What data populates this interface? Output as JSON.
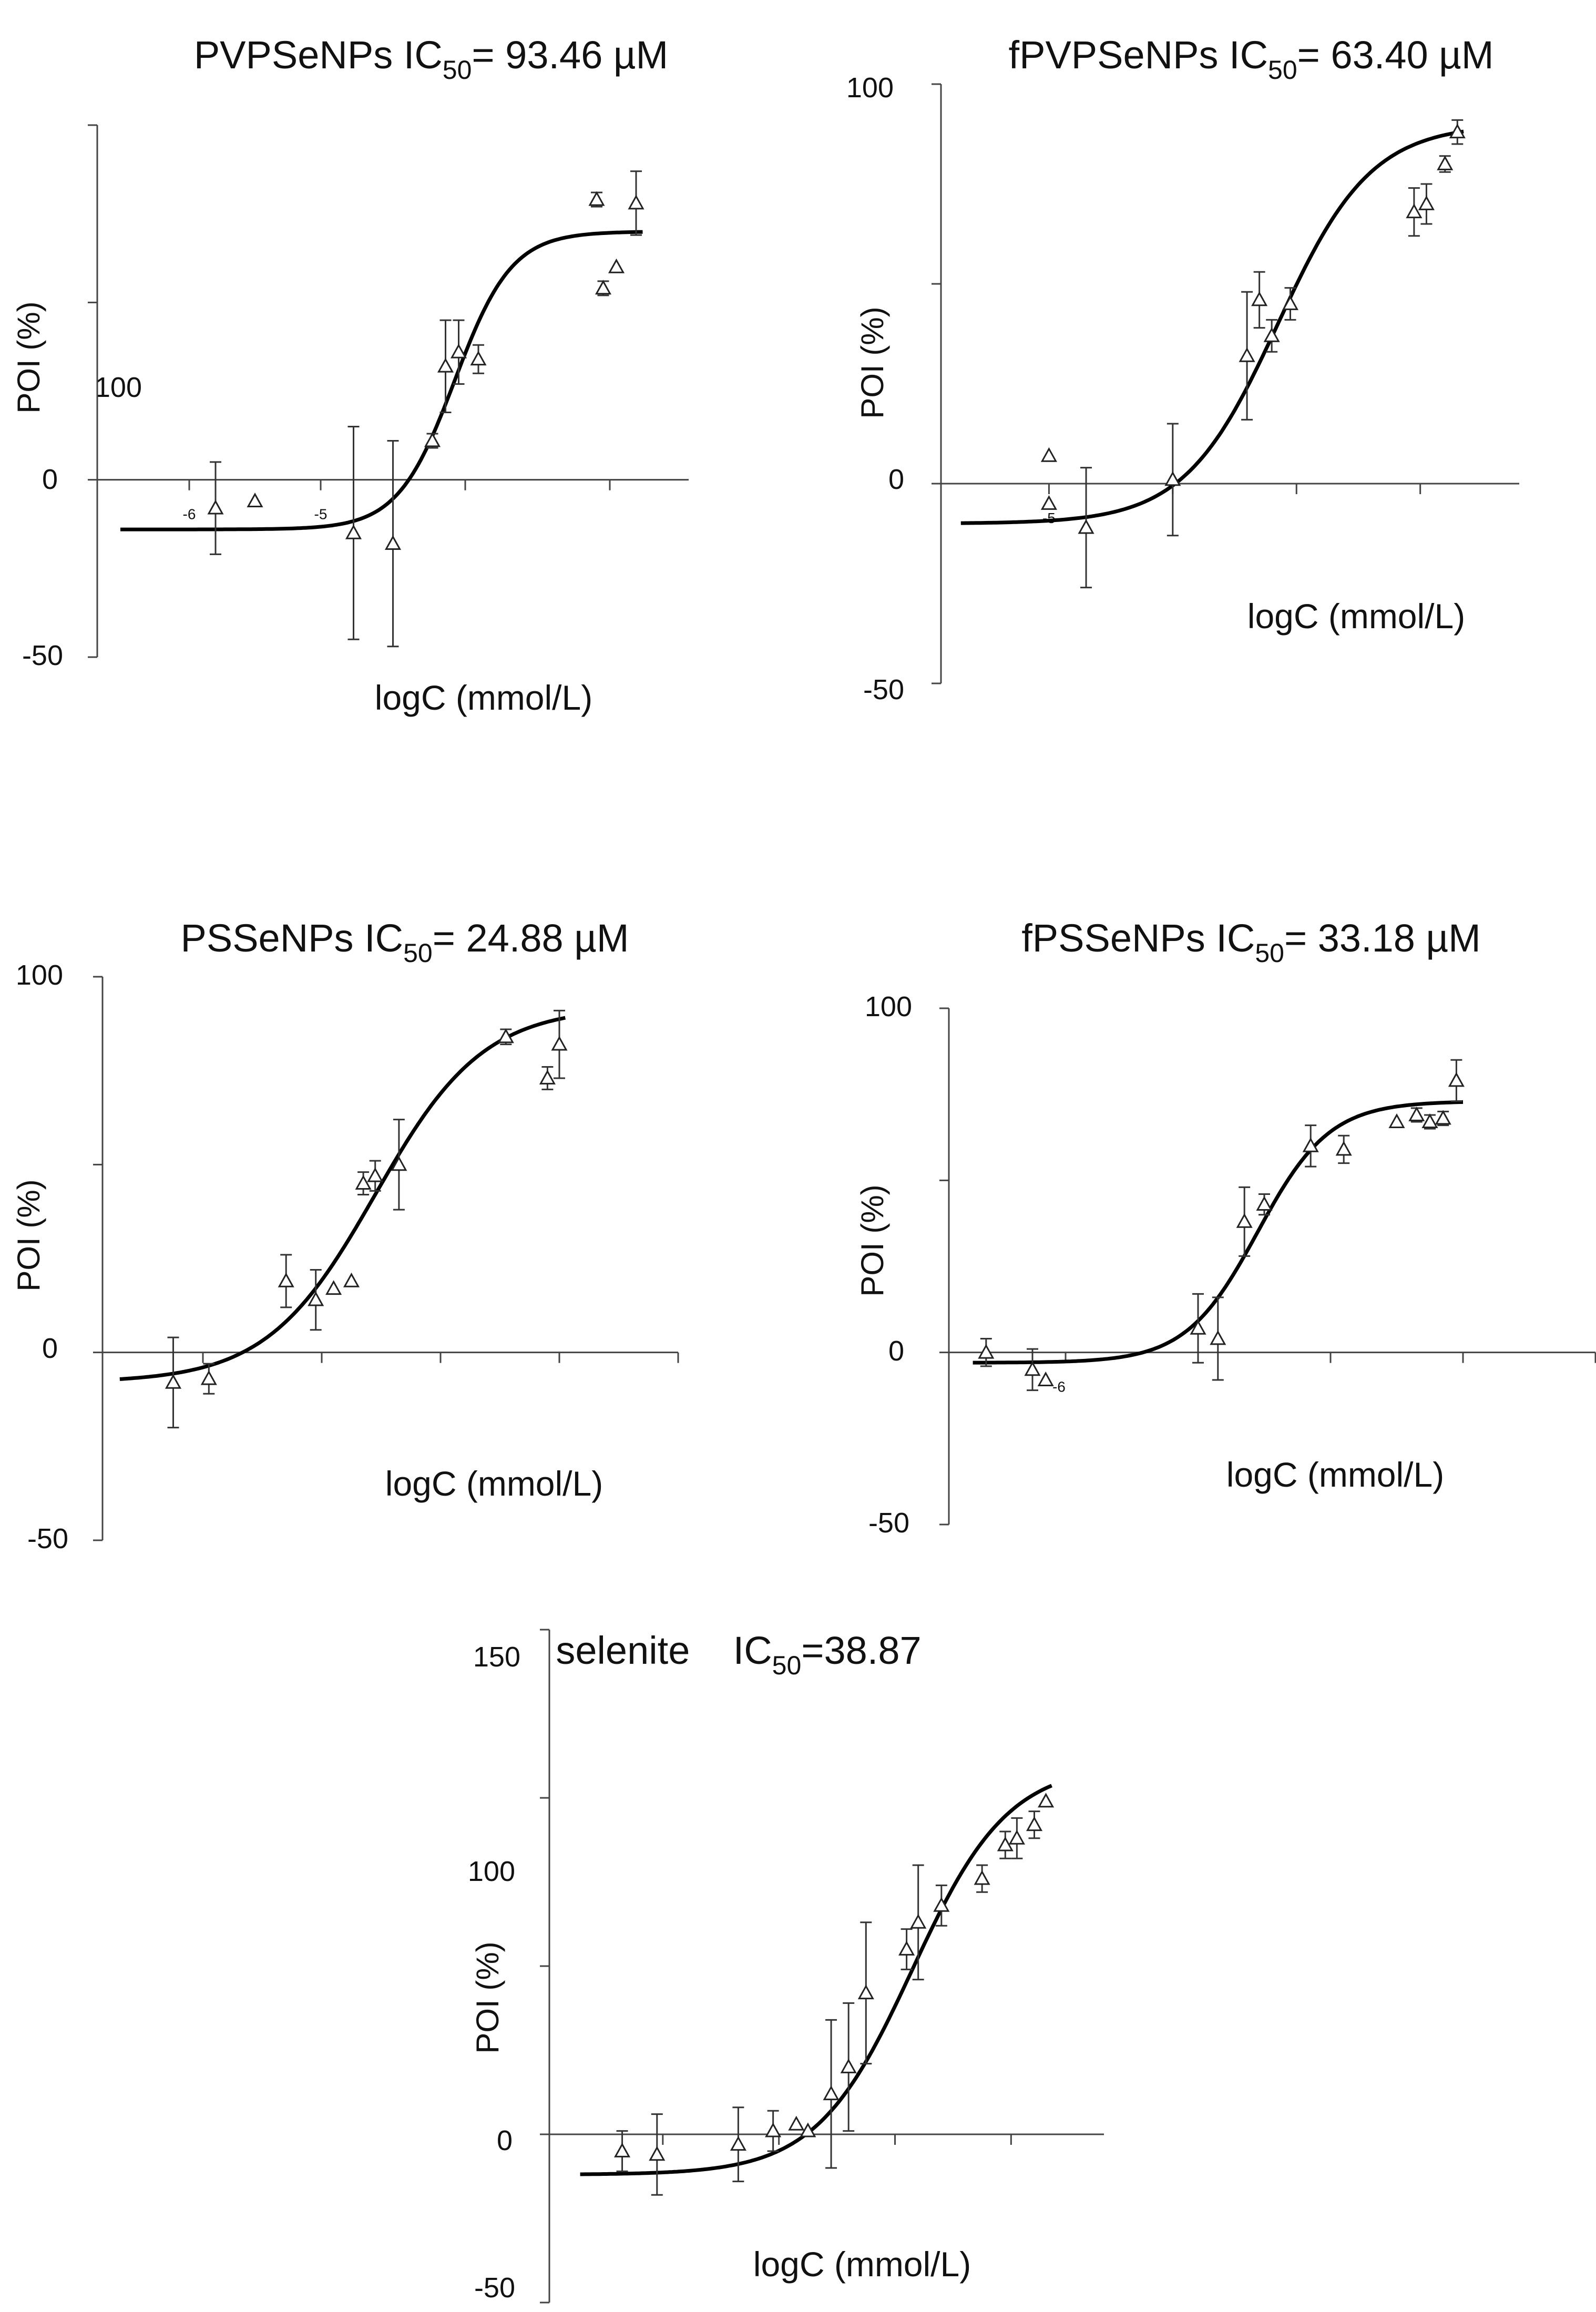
{
  "chart_data": [
    {
      "type": "scatter",
      "title": {
        "name": "PVPSeNPs IC",
        "sub": "50",
        "suffix": "= 93.46 µM"
      },
      "xlabel": "logC (mmol/L)",
      "ylabel": "POI (%)",
      "ylim": [
        -50,
        100
      ],
      "xlim": [
        -7.0,
        -2.4
      ],
      "y_ticks": [
        "100",
        "0",
        "-50"
      ],
      "x_tick_labels": [
        {
          "x": -6.2,
          "label": "-6"
        },
        {
          "x": -5.2,
          "label": "-5"
        }
      ],
      "y_tick_values": [
        100,
        50,
        0,
        -50
      ],
      "x_tick_values": [
        -6.2,
        -5.2,
        -4.1,
        -3.0
      ],
      "points": [
        {
          "x": -6.0,
          "y": -8,
          "err": 13
        },
        {
          "x": -5.7,
          "y": -6,
          "err": 0
        },
        {
          "x": -4.95,
          "y": -15,
          "err": 30
        },
        {
          "x": -4.65,
          "y": -18,
          "err": 29
        },
        {
          "x": -4.35,
          "y": 11,
          "err": 2
        },
        {
          "x": -4.25,
          "y": 32,
          "err": 13
        },
        {
          "x": -4.15,
          "y": 36,
          "err": 9
        },
        {
          "x": -4.0,
          "y": 34,
          "err": 4
        },
        {
          "x": -3.1,
          "y": 79,
          "err": 2
        },
        {
          "x": -3.05,
          "y": 54,
          "err": 2
        },
        {
          "x": -2.95,
          "y": 60,
          "err": 0
        },
        {
          "x": -2.8,
          "y": 78,
          "err": 9
        }
      ],
      "fit": {
        "bottom": -14,
        "top": 70,
        "x50": -4.18,
        "slope": 2.0
      }
    },
    {
      "type": "scatter",
      "title": {
        "name": "fPVPSeNPs IC",
        "sub": "50",
        "suffix": "= 63.40 µM"
      },
      "xlabel": "logC (mmol/L)",
      "ylabel": "POI (%)",
      "ylim": [
        -50,
        100
      ],
      "xlim": [
        -6.2,
        -1.4
      ],
      "y_ticks": [
        "100",
        "0",
        "-50"
      ],
      "x_tick_labels": [
        {
          "x": -5.2,
          "label": "-5"
        }
      ],
      "y_tick_values": [
        100,
        50,
        0,
        -50
      ],
      "x_tick_values": [
        -5.2,
        -4.2,
        -3.2,
        -2.2
      ],
      "points": [
        {
          "x": -5.2,
          "y": -5,
          "err": 0
        },
        {
          "x": -5.2,
          "y": 7,
          "err": 0
        },
        {
          "x": -4.9,
          "y": -11,
          "err": 15
        },
        {
          "x": -4.2,
          "y": 1,
          "err": 14
        },
        {
          "x": -3.6,
          "y": 32,
          "err": 16
        },
        {
          "x": -3.5,
          "y": 46,
          "err": 7
        },
        {
          "x": -3.4,
          "y": 37,
          "err": 4
        },
        {
          "x": -3.25,
          "y": 45,
          "err": 4
        },
        {
          "x": -2.25,
          "y": 68,
          "err": 6
        },
        {
          "x": -2.15,
          "y": 70,
          "err": 5
        },
        {
          "x": -2.0,
          "y": 80,
          "err": 2
        },
        {
          "x": -1.9,
          "y": 88,
          "err": 3
        }
      ],
      "fit": {
        "bottom": -10,
        "top": 90,
        "x50": -3.35,
        "slope": 1.15
      }
    },
    {
      "type": "scatter",
      "title": {
        "name": "PSSeNPs IC",
        "sub": "50",
        "suffix": "= 24.88 µM"
      },
      "xlabel": "logC (mmol/L)",
      "ylabel": "POI (%)",
      "ylim": [
        -50,
        100
      ],
      "xlim": [
        -6.0,
        -1.0
      ],
      "y_ticks": [
        "100",
        "0",
        "-50"
      ],
      "x_tick_labels": [],
      "y_tick_values": [
        100,
        50,
        0,
        -50
      ],
      "x_tick_values": [
        -5.0,
        -4.0,
        -3.0,
        -2.0,
        -1.0
      ],
      "points": [
        {
          "x": -5.25,
          "y": -8,
          "err": 12
        },
        {
          "x": -4.95,
          "y": -7,
          "err": 4
        },
        {
          "x": -4.3,
          "y": 19,
          "err": 7
        },
        {
          "x": -4.05,
          "y": 14,
          "err": 8
        },
        {
          "x": -3.9,
          "y": 17,
          "err": 0
        },
        {
          "x": -3.75,
          "y": 19,
          "err": 0
        },
        {
          "x": -3.65,
          "y": 45,
          "err": 3
        },
        {
          "x": -3.55,
          "y": 47,
          "err": 4
        },
        {
          "x": -3.35,
          "y": 50,
          "err": 12
        },
        {
          "x": -2.45,
          "y": 84,
          "err": 2
        },
        {
          "x": -2.1,
          "y": 73,
          "err": 3
        },
        {
          "x": -2.0,
          "y": 82,
          "err": 9
        }
      ],
      "fit": {
        "bottom": -8,
        "top": 92,
        "x50": -3.55,
        "slope": 0.95
      }
    },
    {
      "type": "scatter",
      "title": {
        "name": "fPSSeNPs IC",
        "sub": "50",
        "suffix": "= 33.18 µM"
      },
      "xlabel": "logC (mmol/L)",
      "ylabel": "POI (%)",
      "ylim": [
        -50,
        100
      ],
      "xlim": [
        -6.4,
        -1.4
      ],
      "y_ticks": [
        "100",
        "0",
        "-50"
      ],
      "x_tick_labels": [
        {
          "x": -5.45,
          "label": "-6"
        }
      ],
      "y_tick_values": [
        100,
        50,
        0,
        -50
      ],
      "x_tick_values": [
        -5.4,
        -4.4,
        -3.4,
        -2.4,
        -1.4
      ],
      "points": [
        {
          "x": -6.0,
          "y": 0,
          "err": 4
        },
        {
          "x": -5.65,
          "y": -5,
          "err": 6
        },
        {
          "x": -5.55,
          "y": -8,
          "err": 0
        },
        {
          "x": -4.4,
          "y": 7,
          "err": 10
        },
        {
          "x": -4.25,
          "y": 4,
          "err": 12
        },
        {
          "x": -4.05,
          "y": 38,
          "err": 10
        },
        {
          "x": -3.9,
          "y": 43,
          "err": 3
        },
        {
          "x": -3.55,
          "y": 60,
          "err": 6
        },
        {
          "x": -3.3,
          "y": 59,
          "err": 4
        },
        {
          "x": -2.9,
          "y": 67,
          "err": 0
        },
        {
          "x": -2.75,
          "y": 69,
          "err": 2
        },
        {
          "x": -2.65,
          "y": 67,
          "err": 2
        },
        {
          "x": -2.55,
          "y": 68,
          "err": 2
        },
        {
          "x": -2.45,
          "y": 79,
          "err": 6
        }
      ],
      "fit": {
        "bottom": -3,
        "top": 73,
        "x50": -3.95,
        "slope": 1.6
      }
    },
    {
      "type": "scatter",
      "title": {
        "name": "selenite    IC",
        "sub": "50",
        "suffix": "=38.87"
      },
      "xlabel": "logC (mmol/L)",
      "ylabel": "POI (%)",
      "ylim": [
        -50,
        150
      ],
      "xlim": [
        -7.0,
        -2.2
      ],
      "y_ticks": [
        "150",
        "100",
        "0",
        "-50"
      ],
      "x_tick_labels": [],
      "y_tick_values": [
        150,
        100,
        50,
        0,
        -50
      ],
      "x_tick_values": [
        -6.0,
        -5.0,
        -4.0,
        -3.0
      ],
      "points": [
        {
          "x": -6.35,
          "y": -5,
          "err": 6
        },
        {
          "x": -6.05,
          "y": -6,
          "err": 12
        },
        {
          "x": -5.35,
          "y": -3,
          "err": 11
        },
        {
          "x": -5.05,
          "y": 1,
          "err": 6
        },
        {
          "x": -4.85,
          "y": 3,
          "err": 0
        },
        {
          "x": -4.75,
          "y": 1,
          "err": 0
        },
        {
          "x": -4.55,
          "y": 12,
          "err": 22
        },
        {
          "x": -4.4,
          "y": 20,
          "err": 19
        },
        {
          "x": -4.25,
          "y": 42,
          "err": 21
        },
        {
          "x": -3.9,
          "y": 55,
          "err": 6
        },
        {
          "x": -3.8,
          "y": 63,
          "err": 17
        },
        {
          "x": -3.6,
          "y": 68,
          "err": 6
        },
        {
          "x": -3.25,
          "y": 76,
          "err": 4
        },
        {
          "x": -3.05,
          "y": 86,
          "err": 4
        },
        {
          "x": -2.95,
          "y": 88,
          "err": 6
        },
        {
          "x": -2.8,
          "y": 92,
          "err": 4
        },
        {
          "x": -2.7,
          "y": 99,
          "err": 0
        }
      ],
      "fit": {
        "bottom": -12,
        "top": 110,
        "x50": -3.85,
        "slope": 1.05
      }
    }
  ]
}
